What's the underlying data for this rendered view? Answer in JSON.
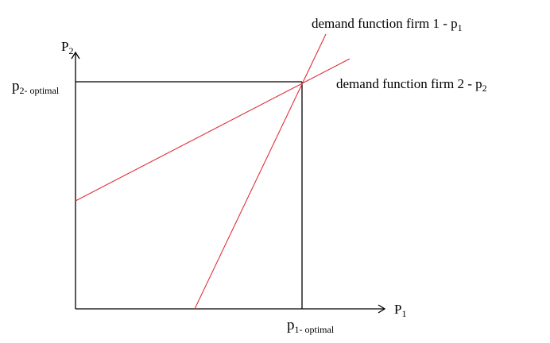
{
  "axes": {
    "y_label": {
      "main": "P",
      "sub": "2"
    },
    "x_label": {
      "main": "P",
      "sub": "1"
    }
  },
  "optimal": {
    "p2": {
      "main": "p",
      "sub": "2- optimal"
    },
    "p1": {
      "main": "p",
      "sub": "1- optimal"
    }
  },
  "curves": [
    {
      "text": "demand function firm 1 - p",
      "sub": "1",
      "color": "#e0303c"
    },
    {
      "text": "demand function firm 2 - p",
      "sub": "2",
      "color": "#e0303c"
    }
  ],
  "axis_color": "#000000"
}
